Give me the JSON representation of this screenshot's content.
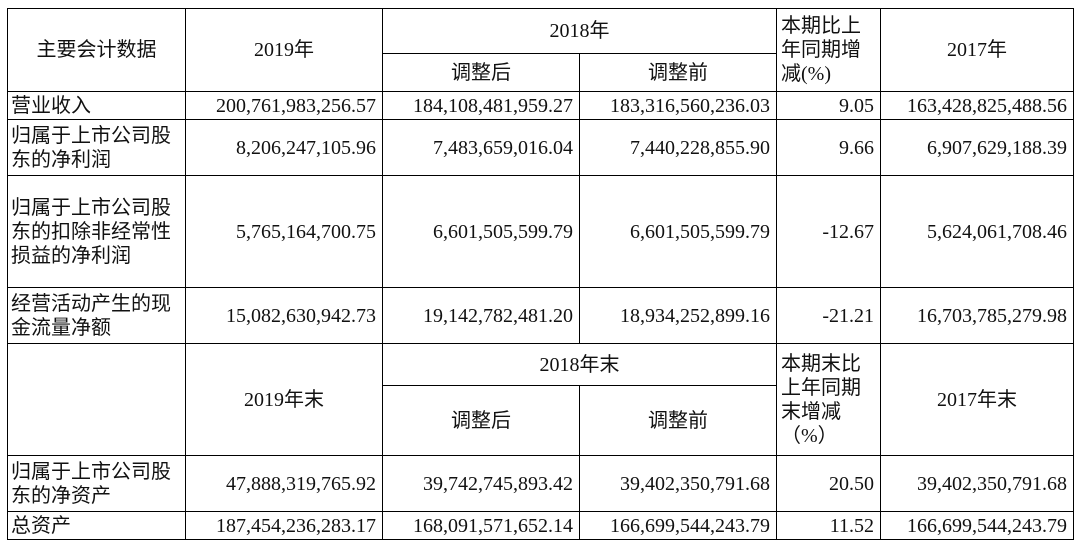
{
  "header1": {
    "label": "主要会计数据",
    "col_2019": "2019年",
    "col_2018": "2018年",
    "sub_adjusted": "调整后",
    "sub_before": "调整前",
    "change": "本期比上年同期增减(%)",
    "col_2017": "2017年"
  },
  "flow_rows": [
    {
      "label": "营业收入",
      "v2019": "200,761,983,256.57",
      "v2018_adj": "184,108,481,959.27",
      "v2018_pre": "183,316,560,236.03",
      "change": "9.05",
      "v2017": "163,428,825,488.56"
    },
    {
      "label": "归属于上市公司股东的净利润",
      "v2019": "8,206,247,105.96",
      "v2018_adj": "7,483,659,016.04",
      "v2018_pre": "7,440,228,855.90",
      "change": "9.66",
      "v2017": "6,907,629,188.39"
    },
    {
      "label": "归属于上市公司股东的扣除非经常性损益的净利润",
      "v2019": "5,765,164,700.75",
      "v2018_adj": "6,601,505,599.79",
      "v2018_pre": "6,601,505,599.79",
      "change": "-12.67",
      "v2017": "5,624,061,708.46"
    },
    {
      "label": "经营活动产生的现金流量净额",
      "v2019": "15,082,630,942.73",
      "v2018_adj": "19,142,782,481.20",
      "v2018_pre": "18,934,252,899.16",
      "change": "-21.21",
      "v2017": "16,703,785,279.98"
    }
  ],
  "header2": {
    "label": "",
    "col_2019": "2019年末",
    "col_2018": "2018年末",
    "sub_adjusted": "调整后",
    "sub_before": "调整前",
    "change": "本期末比上年同期末增减（%）",
    "col_2017": "2017年末"
  },
  "stock_rows": [
    {
      "label": "归属于上市公司股东的净资产",
      "v2019": "47,888,319,765.92",
      "v2018_adj": "39,742,745,893.42",
      "v2018_pre": "39,402,350,791.68",
      "change": "20.50",
      "v2017": "39,402,350,791.68"
    },
    {
      "label": "总资产",
      "v2019": "187,454,236,283.17",
      "v2018_adj": "168,091,571,652.14",
      "v2018_pre": "166,699,544,243.79",
      "change": "11.52",
      "v2017": "166,699,544,243.79"
    }
  ]
}
